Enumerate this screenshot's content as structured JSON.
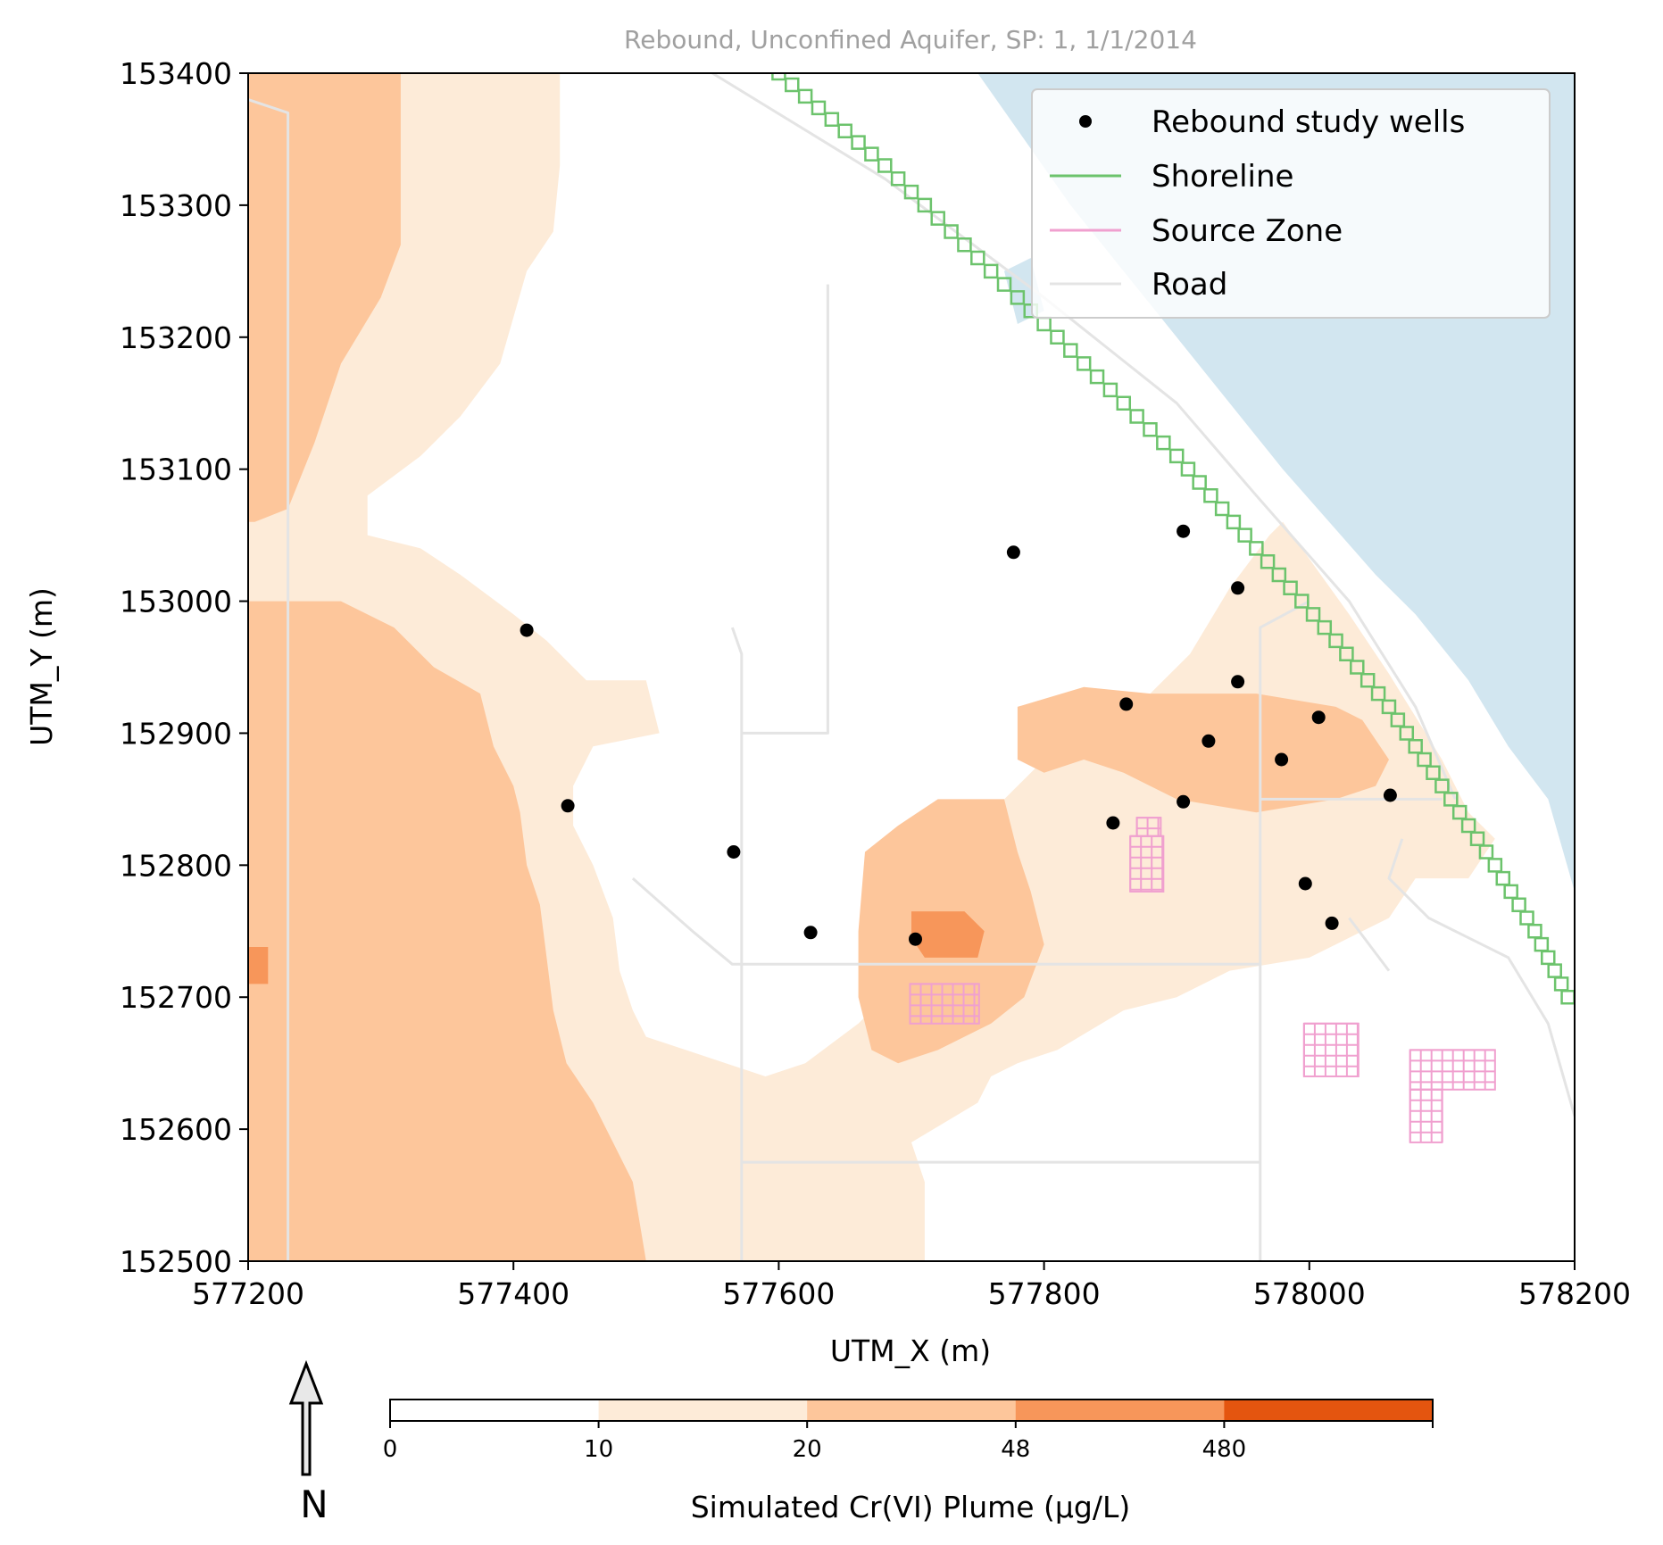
{
  "chart_data": {
    "type": "map",
    "title": "Rebound, Unconfined Aquifer, SP: 1, 1/1/2014",
    "xlabel": "UTM_X (m)",
    "ylabel": "UTM_Y (m)",
    "xlim": [
      577200,
      578200
    ],
    "ylim": [
      152500,
      153400
    ],
    "xticks": [
      577200,
      577400,
      577600,
      577800,
      578000,
      578200
    ],
    "yticks": [
      152500,
      152600,
      152700,
      152800,
      152900,
      153000,
      153100,
      153200,
      153300,
      153400
    ],
    "legend": {
      "placement": "top-right",
      "entries": [
        {
          "label": "Rebound study wells",
          "kind": "marker",
          "color": "#000000"
        },
        {
          "label": "Shoreline",
          "kind": "line",
          "color": "#6cc36c"
        },
        {
          "label": "Source Zone",
          "kind": "line",
          "color": "#f0a0cf"
        },
        {
          "label": "Road",
          "kind": "line",
          "color": "#e4e4e4"
        }
      ]
    },
    "colorbar": {
      "label": "Simulated Cr(VI) Plume (µg/L)",
      "tick_labels": [
        "0",
        "10",
        "20",
        "48",
        "480"
      ],
      "colors": [
        "#ffffff",
        "#fdebd8",
        "#fdc69b",
        "#f7965a",
        "#e4550f"
      ]
    },
    "north_label": "N",
    "water_color": "#d2e6f0",
    "wells": [
      {
        "x": 577410,
        "y": 152978
      },
      {
        "x": 577441,
        "y": 152845
      },
      {
        "x": 577566,
        "y": 152810
      },
      {
        "x": 577624,
        "y": 152749
      },
      {
        "x": 577703,
        "y": 152744
      },
      {
        "x": 577777,
        "y": 153037
      },
      {
        "x": 577852,
        "y": 152832
      },
      {
        "x": 577862,
        "y": 152922
      },
      {
        "x": 577905,
        "y": 153053
      },
      {
        "x": 577905,
        "y": 152848
      },
      {
        "x": 577924,
        "y": 152894
      },
      {
        "x": 577946,
        "y": 153010
      },
      {
        "x": 577946,
        "y": 152939
      },
      {
        "x": 577979,
        "y": 152880
      },
      {
        "x": 577997,
        "y": 152786
      },
      {
        "x": 578007,
        "y": 152912
      },
      {
        "x": 578017,
        "y": 152756
      },
      {
        "x": 578061,
        "y": 152853
      }
    ],
    "shoreline": [
      [
        577600,
        153400
      ],
      [
        577680,
        153330
      ],
      [
        577760,
        153250
      ],
      [
        577840,
        153170
      ],
      [
        577900,
        153110
      ],
      [
        577960,
        153040
      ],
      [
        578020,
        152970
      ],
      [
        578060,
        152920
      ],
      [
        578100,
        152860
      ],
      [
        578140,
        152800
      ],
      [
        578170,
        152750
      ],
      [
        578200,
        152690
      ]
    ],
    "water_edge": [
      [
        577750,
        153400
      ],
      [
        577820,
        153300
      ],
      [
        577900,
        153200
      ],
      [
        577980,
        153100
      ],
      [
        578050,
        153020
      ],
      [
        578080,
        152990
      ],
      [
        578120,
        152940
      ],
      [
        578150,
        152890
      ],
      [
        578180,
        152850
      ],
      [
        578200,
        152780
      ]
    ],
    "water_island": [
      [
        577770,
        153250
      ],
      [
        577790,
        153260
      ],
      [
        577800,
        153220
      ],
      [
        577780,
        153210
      ]
    ],
    "roads": [
      [
        [
          577550,
          153400
        ],
        [
          577680,
          153320
        ],
        [
          577800,
          153230
        ],
        [
          577900,
          153150
        ],
        [
          577960,
          153080
        ],
        [
          578030,
          153000
        ],
        [
          578080,
          152920
        ],
        [
          578110,
          152850
        ]
      ],
      [
        [
          577200,
          153380
        ],
        [
          577230,
          153370
        ],
        [
          577230,
          152500
        ]
      ],
      [
        [
          577565,
          152980
        ],
        [
          577572,
          152960
        ],
        [
          577572,
          152500
        ]
      ],
      [
        [
          577572,
          152900
        ],
        [
          577637,
          152900
        ],
        [
          577637,
          153240
        ]
      ],
      [
        [
          577572,
          152725
        ],
        [
          577963,
          152725
        ],
        [
          577963,
          152500
        ]
      ],
      [
        [
          577572,
          152575
        ],
        [
          577963,
          152575
        ]
      ],
      [
        [
          577963,
          152725
        ],
        [
          577963,
          152980
        ],
        [
          578000,
          153000
        ]
      ],
      [
        [
          577963,
          152850
        ],
        [
          578100,
          152850
        ]
      ],
      [
        [
          577490,
          152790
        ],
        [
          577535,
          152750
        ],
        [
          577565,
          152725
        ],
        [
          577572,
          152725
        ]
      ],
      [
        [
          578070,
          152820
        ],
        [
          578060,
          152790
        ],
        [
          578090,
          152760
        ],
        [
          578150,
          152730
        ],
        [
          578180,
          152680
        ],
        [
          578200,
          152610
        ]
      ],
      [
        [
          578030,
          152760
        ],
        [
          578060,
          152720
        ]
      ]
    ],
    "plume_zones": [
      {
        "level": 1,
        "polygon": [
          [
            577200,
            153400
          ],
          [
            577435,
            153400
          ],
          [
            577435,
            153330
          ],
          [
            577430,
            153280
          ],
          [
            577410,
            153250
          ],
          [
            577390,
            153180
          ],
          [
            577360,
            153140
          ],
          [
            577330,
            153110
          ],
          [
            577290,
            153080
          ],
          [
            577290,
            153050
          ],
          [
            577330,
            153040
          ],
          [
            577360,
            153020
          ],
          [
            577400,
            152990
          ],
          [
            577425,
            152970
          ],
          [
            577455,
            152940
          ],
          [
            577500,
            152940
          ],
          [
            577510,
            152900
          ],
          [
            577460,
            152890
          ],
          [
            577445,
            152860
          ],
          [
            577445,
            152830
          ],
          [
            577460,
            152800
          ],
          [
            577475,
            152760
          ],
          [
            577480,
            152720
          ],
          [
            577490,
            152690
          ],
          [
            577500,
            152670
          ],
          [
            577560,
            152650
          ],
          [
            577590,
            152640
          ],
          [
            577620,
            152650
          ],
          [
            577660,
            152680
          ],
          [
            577700,
            152720
          ],
          [
            577720,
            152760
          ],
          [
            577730,
            152800
          ],
          [
            577760,
            152840
          ],
          [
            577800,
            152880
          ],
          [
            577850,
            152910
          ],
          [
            577880,
            152930
          ],
          [
            577910,
            152960
          ],
          [
            577940,
            153010
          ],
          [
            577970,
            153050
          ],
          [
            577980,
            153060
          ],
          [
            578030,
            152990
          ],
          [
            578060,
            152945
          ],
          [
            578100,
            152880
          ],
          [
            578120,
            152840
          ],
          [
            578140,
            152820
          ],
          [
            578120,
            152790
          ],
          [
            578080,
            152790
          ],
          [
            578060,
            152760
          ],
          [
            578020,
            152740
          ],
          [
            578000,
            152730
          ],
          [
            577940,
            152720
          ],
          [
            577900,
            152700
          ],
          [
            577860,
            152690
          ],
          [
            577810,
            152660
          ],
          [
            577780,
            152650
          ],
          [
            577760,
            152640
          ],
          [
            577750,
            152620
          ],
          [
            577700,
            152590
          ],
          [
            577710,
            152560
          ],
          [
            577710,
            152500
          ],
          [
            577200,
            152500
          ]
        ]
      },
      {
        "level": 2,
        "polygon": [
          [
            577200,
            153400
          ],
          [
            577315,
            153400
          ],
          [
            577315,
            153270
          ],
          [
            577300,
            153230
          ],
          [
            577270,
            153180
          ],
          [
            577250,
            153120
          ],
          [
            577230,
            153070
          ],
          [
            577205,
            153060
          ],
          [
            577200,
            153060
          ]
        ]
      },
      {
        "level": 2,
        "polygon": [
          [
            577200,
            153000
          ],
          [
            577270,
            153000
          ],
          [
            577310,
            152980
          ],
          [
            577340,
            152950
          ],
          [
            577375,
            152930
          ],
          [
            577385,
            152890
          ],
          [
            577400,
            152860
          ],
          [
            577405,
            152840
          ],
          [
            577410,
            152800
          ],
          [
            577420,
            152770
          ],
          [
            577425,
            152730
          ],
          [
            577430,
            152690
          ],
          [
            577440,
            152650
          ],
          [
            577460,
            152620
          ],
          [
            577475,
            152590
          ],
          [
            577490,
            152560
          ],
          [
            577495,
            152530
          ],
          [
            577500,
            152500
          ],
          [
            577200,
            152500
          ]
        ]
      },
      {
        "level": 2,
        "polygon": [
          [
            577665,
            152810
          ],
          [
            577690,
            152830
          ],
          [
            577720,
            152850
          ],
          [
            577770,
            152850
          ],
          [
            577780,
            152810
          ],
          [
            577790,
            152780
          ],
          [
            577800,
            152740
          ],
          [
            577785,
            152700
          ],
          [
            577760,
            152680
          ],
          [
            577720,
            152660
          ],
          [
            577690,
            152650
          ],
          [
            577670,
            152660
          ],
          [
            577660,
            152700
          ],
          [
            577660,
            152750
          ]
        ]
      },
      {
        "level": 2,
        "polygon": [
          [
            577780,
            152920
          ],
          [
            577830,
            152935
          ],
          [
            577880,
            152930
          ],
          [
            577960,
            152930
          ],
          [
            578020,
            152920
          ],
          [
            578040,
            152910
          ],
          [
            578060,
            152880
          ],
          [
            578050,
            152860
          ],
          [
            578020,
            152850
          ],
          [
            577960,
            152840
          ],
          [
            577900,
            152850
          ],
          [
            577860,
            152870
          ],
          [
            577830,
            152880
          ],
          [
            577800,
            152870
          ],
          [
            577780,
            152880
          ]
        ]
      },
      {
        "level": 3,
        "polygon": [
          [
            577700,
            152765
          ],
          [
            577740,
            152765
          ],
          [
            577755,
            152750
          ],
          [
            577750,
            152730
          ],
          [
            577710,
            152730
          ],
          [
            577700,
            152745
          ]
        ]
      },
      {
        "level": 3,
        "polygon": [
          [
            577200,
            152738
          ],
          [
            577215,
            152738
          ],
          [
            577215,
            152710
          ],
          [
            577200,
            152710
          ]
        ]
      }
    ],
    "source_zones": [
      {
        "x0": 577699,
        "y0": 152680,
        "x1": 577751,
        "y1": 152710
      },
      {
        "x0": 577870,
        "y0": 152822,
        "x1": 577888,
        "y1": 152836
      },
      {
        "x0": 577865,
        "y0": 152780,
        "x1": 577890,
        "y1": 152822
      },
      {
        "x0": 577996,
        "y0": 152640,
        "x1": 578037,
        "y1": 152680
      },
      {
        "x0": 578076,
        "y0": 152630,
        "x1": 578140,
        "y1": 152660
      },
      {
        "x0": 578076,
        "y0": 152590,
        "x1": 578100,
        "y1": 152630
      }
    ]
  }
}
